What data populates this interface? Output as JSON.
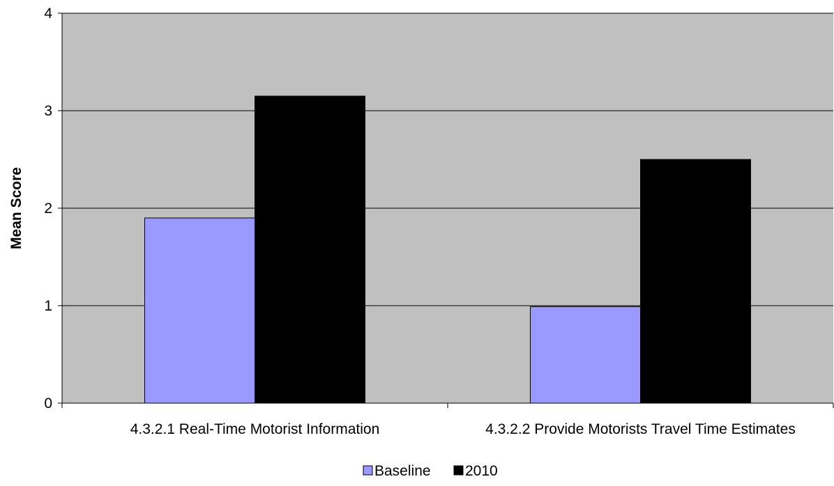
{
  "chart_data": {
    "type": "bar",
    "title": "",
    "xlabel": "",
    "ylabel": "Mean Score",
    "ylim": [
      0,
      4
    ],
    "yticks": [
      0,
      1,
      2,
      3,
      4
    ],
    "categories": [
      "4.3.2.1 Real-Time  Motorist Information",
      "4.3.2.2 Provide  Motorists Travel Time  Estimates"
    ],
    "series": [
      {
        "name": "Baseline",
        "values": [
          1.9,
          0.99
        ],
        "color": "#9999ff"
      },
      {
        "name": "2010",
        "values": [
          3.15,
          2.5
        ],
        "color": "#000000"
      }
    ],
    "grid": true,
    "plot_background": "#c0c0c0",
    "legend_position": "bottom-center"
  }
}
